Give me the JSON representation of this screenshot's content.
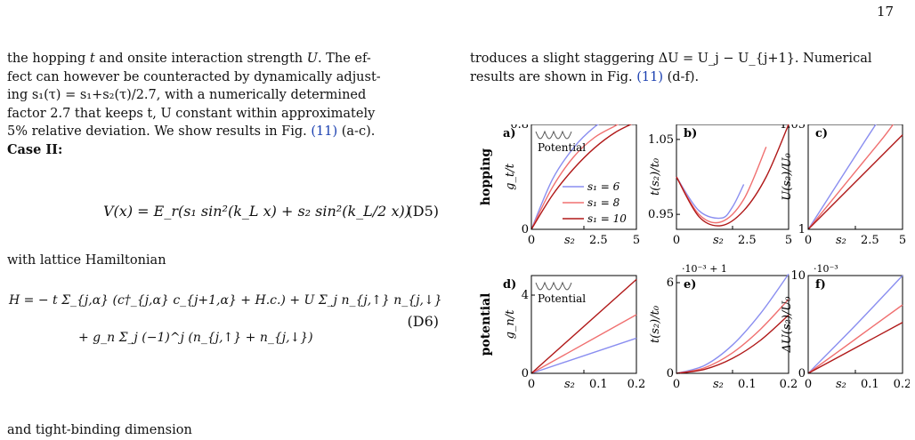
{
  "page_number": "17",
  "left": {
    "para1": [
      "the hopping ",
      "t",
      " and onsite interaction strength ",
      "U",
      ". The ef-",
      "fect can however be counteracted by dynamically adjust-",
      "ing s₁(τ) = s₁+s₂(τ)/2.7, with a numerically determined",
      "factor 2.7 that keeps t, U constant within approximately",
      "5% relative deviation. We show results in Fig. "
    ],
    "fig_ref": "(11)",
    "fig_sub": " (a-c).",
    "case_heading": "Case II:",
    "eq_d5": "V(x)  = E_r(s₁ sin²(k_L x) + s₂ sin²(k_L/2 x))",
    "eq_d5_num": "(D5)",
    "with_text": "with lattice Hamiltonian",
    "eq_d6_line1": "H = − t Σ_{j,α} (c†_{j,α} c_{j+1,α} + H.c.) + U Σ_j n_{j,↑} n_{j,↓}",
    "eq_d6_line2": "+ g_n Σ_j (−1)^j (n_{j,↑} + n_{j,↓})",
    "eq_d6_num": "(D6)",
    "trailing": "and tight-binding dimension"
  },
  "right": {
    "line1": "troduces a slight staggering ΔU = U_j − U_{j+1}. Numerical",
    "line2_a": "results are shown in Fig. ",
    "line2_ref": "(11)",
    "line2_b": " (d-f)."
  },
  "figure": {
    "row_labels": [
      "hopping",
      "potential"
    ],
    "panel_labels": [
      "a)",
      "b)",
      "c)",
      "d)",
      "e)",
      "f)"
    ],
    "potential_label": "Potential",
    "legend": [
      "s₁ = 6",
      "s₁ = 8",
      "s₁ = 10"
    ],
    "colors": {
      "s1_6": "#8a8ef0",
      "s1_8": "#f07070",
      "s1_10": "#b01818"
    },
    "ylabels": [
      "g_t/t",
      "t(s₂)/t₀",
      "U(s₂)/U₀",
      "g_n/t",
      "t(s₂)/t₀",
      "ΔU(s₂)/U₀"
    ],
    "xlabel": "s₂",
    "multipliers": {
      "e": "·10⁻³ + 1",
      "f": "·10⁻³"
    },
    "ticks": {
      "a_y": [
        "0",
        "0.8"
      ],
      "a_x": [
        "0",
        "2.5",
        "5"
      ],
      "b_y": [
        "1.05",
        "0.95"
      ],
      "b_x": [
        "0",
        "2.5",
        "5"
      ],
      "c_y": [
        "1.05",
        "1"
      ],
      "c_x": [
        "0",
        "2.5",
        "5"
      ],
      "d_y": [
        "0",
        "4"
      ],
      "d_x": [
        "0",
        "0.1",
        "0.2"
      ],
      "e_y": [
        "6",
        "0"
      ],
      "e_x": [
        "0",
        "0.1",
        "0.2"
      ],
      "f_y": [
        "10",
        "0"
      ],
      "f_x": [
        "0",
        "0.1",
        "0.2"
      ]
    }
  },
  "chart_data": [
    {
      "type": "line",
      "title": "",
      "xlabel": "s₂",
      "ylabel": "g_t/t",
      "xlim": [
        0,
        5
      ],
      "ylim": [
        0,
        0.8
      ],
      "series": [
        {
          "name": "s₁ = 6",
          "x": [
            0,
            1,
            2,
            3,
            4
          ],
          "y": [
            0,
            0.38,
            0.62,
            0.78,
            0.88
          ]
        },
        {
          "name": "s₁ = 8",
          "x": [
            0,
            1,
            2,
            3,
            4,
            4.3
          ],
          "y": [
            0,
            0.32,
            0.55,
            0.7,
            0.79,
            0.82
          ]
        },
        {
          "name": "s₁ = 10",
          "x": [
            0,
            1,
            2,
            3,
            4,
            5
          ],
          "y": [
            0,
            0.26,
            0.46,
            0.62,
            0.74,
            0.82
          ]
        }
      ]
    },
    {
      "type": "line",
      "title": "",
      "xlabel": "s₂",
      "ylabel": "t(s₂)/t₀",
      "xlim": [
        0,
        5
      ],
      "ylim": [
        0.93,
        1.07
      ],
      "series": [
        {
          "name": "s₁ = 6",
          "x": [
            0,
            1,
            2,
            2.5,
            3
          ],
          "y": [
            1.0,
            0.955,
            0.945,
            0.96,
            0.99
          ]
        },
        {
          "name": "s₁ = 8",
          "x": [
            0,
            1,
            2,
            3,
            4
          ],
          "y": [
            1.0,
            0.95,
            0.94,
            0.97,
            1.04
          ]
        },
        {
          "name": "s₁ = 10",
          "x": [
            0,
            1,
            2,
            3,
            4,
            5
          ],
          "y": [
            1.0,
            0.947,
            0.935,
            0.955,
            1.0,
            1.07
          ]
        }
      ]
    },
    {
      "type": "line",
      "title": "",
      "xlabel": "s₂",
      "ylabel": "U(s₂)/U₀",
      "xlim": [
        0,
        5
      ],
      "ylim": [
        1,
        1.05
      ],
      "series": [
        {
          "name": "s₁ = 6",
          "x": [
            0,
            1,
            2,
            3,
            3.8
          ],
          "y": [
            1.0,
            1.014,
            1.028,
            1.042,
            1.053
          ]
        },
        {
          "name": "s₁ = 8",
          "x": [
            0,
            1,
            2,
            3,
            4,
            4.5
          ],
          "y": [
            1.0,
            1.011,
            1.022,
            1.033,
            1.044,
            1.05
          ]
        },
        {
          "name": "s₁ = 10",
          "x": [
            0,
            1,
            2,
            3,
            4,
            5
          ],
          "y": [
            1.0,
            1.009,
            1.018,
            1.027,
            1.036,
            1.045
          ]
        }
      ]
    },
    {
      "type": "line",
      "title": "",
      "xlabel": "s₂",
      "ylabel": "g_n/t",
      "xlim": [
        0,
        0.2
      ],
      "ylim": [
        0,
        5
      ],
      "series": [
        {
          "name": "s₁ = 6",
          "x": [
            0,
            0.2
          ],
          "y": [
            0,
            1.8
          ]
        },
        {
          "name": "s₁ = 8",
          "x": [
            0,
            0.2
          ],
          "y": [
            0,
            3.0
          ]
        },
        {
          "name": "s₁ = 10",
          "x": [
            0,
            0.2
          ],
          "y": [
            0,
            4.8
          ]
        }
      ]
    },
    {
      "type": "line",
      "title": "",
      "xlabel": "s₂",
      "ylabel": "t(s₂)/t₀",
      "xlim": [
        0,
        0.2
      ],
      "ylim": [
        0,
        6.2
      ],
      "series": [
        {
          "name": "s₁ = 6",
          "x": [
            0,
            0.05,
            0.1,
            0.15,
            0.2
          ],
          "y": [
            0,
            0.5,
            1.8,
            3.8,
            6.3
          ]
        },
        {
          "name": "s₁ = 8",
          "x": [
            0,
            0.05,
            0.1,
            0.15,
            0.2
          ],
          "y": [
            0,
            0.35,
            1.3,
            2.8,
            4.7
          ]
        },
        {
          "name": "s₁ = 10",
          "x": [
            0,
            0.05,
            0.1,
            0.15,
            0.2
          ],
          "y": [
            0,
            0.25,
            0.95,
            2.1,
            3.7
          ]
        }
      ]
    },
    {
      "type": "line",
      "title": "",
      "xlabel": "s₂",
      "ylabel": "ΔU(s₂)/U₀",
      "xlim": [
        0,
        0.2
      ],
      "ylim": [
        0,
        10
      ],
      "series": [
        {
          "name": "s₁ = 6",
          "x": [
            0,
            0.1,
            0.2
          ],
          "y": [
            0,
            4.9,
            10
          ]
        },
        {
          "name": "s₁ = 8",
          "x": [
            0,
            0.1,
            0.2
          ],
          "y": [
            0,
            3.5,
            7.0
          ]
        },
        {
          "name": "s₁ = 10",
          "x": [
            0,
            0.1,
            0.2
          ],
          "y": [
            0,
            2.6,
            5.2
          ]
        }
      ]
    }
  ]
}
